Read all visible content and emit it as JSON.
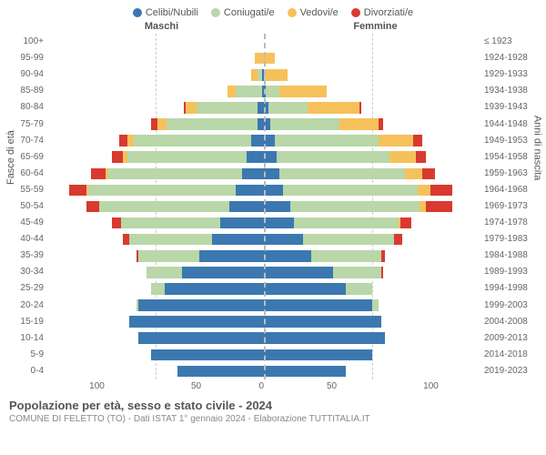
{
  "chart": {
    "type": "population-pyramid",
    "legend": [
      {
        "label": "Celibi/Nubili",
        "color": "#3b78b0"
      },
      {
        "label": "Coniugati/e",
        "color": "#b9d7a8"
      },
      {
        "label": "Vedovi/e",
        "color": "#f6c15b"
      },
      {
        "label": "Divorziati/e",
        "color": "#d83a2f"
      }
    ],
    "header_male": "Maschi",
    "header_female": "Femmine",
    "y_left_title": "Fasce di età",
    "y_right_title": "Anni di nascita",
    "x_max": 100,
    "x_ticks": [
      100,
      50,
      0,
      50,
      100
    ],
    "colors": {
      "grid": "#cccccc",
      "center": "#bbbbbb",
      "background": "#ffffff"
    },
    "age_groups": [
      {
        "age": "100+",
        "birth": "≤ 1923",
        "m": {
          "c": 0,
          "co": 0,
          "v": 0,
          "d": 0
        },
        "f": {
          "c": 0,
          "co": 0,
          "v": 0,
          "d": 0
        }
      },
      {
        "age": "95-99",
        "birth": "1924-1928",
        "m": {
          "c": 0,
          "co": 0,
          "v": 4,
          "d": 0
        },
        "f": {
          "c": 0,
          "co": 0,
          "v": 5,
          "d": 0
        }
      },
      {
        "age": "90-94",
        "birth": "1929-1933",
        "m": {
          "c": 1,
          "co": 2,
          "v": 3,
          "d": 0
        },
        "f": {
          "c": 0,
          "co": 1,
          "v": 10,
          "d": 0
        }
      },
      {
        "age": "85-89",
        "birth": "1934-1938",
        "m": {
          "c": 1,
          "co": 12,
          "v": 4,
          "d": 0
        },
        "f": {
          "c": 1,
          "co": 6,
          "v": 22,
          "d": 0
        }
      },
      {
        "age": "80-84",
        "birth": "1939-1943",
        "m": {
          "c": 3,
          "co": 28,
          "v": 5,
          "d": 1
        },
        "f": {
          "c": 2,
          "co": 18,
          "v": 24,
          "d": 1
        }
      },
      {
        "age": "75-79",
        "birth": "1944-1948",
        "m": {
          "c": 3,
          "co": 42,
          "v": 4,
          "d": 3
        },
        "f": {
          "c": 3,
          "co": 32,
          "v": 18,
          "d": 2
        }
      },
      {
        "age": "70-74",
        "birth": "1949-1953",
        "m": {
          "c": 6,
          "co": 54,
          "v": 3,
          "d": 4
        },
        "f": {
          "c": 5,
          "co": 48,
          "v": 16,
          "d": 4
        }
      },
      {
        "age": "65-69",
        "birth": "1954-1958",
        "m": {
          "c": 8,
          "co": 55,
          "v": 2,
          "d": 5
        },
        "f": {
          "c": 6,
          "co": 52,
          "v": 12,
          "d": 5
        }
      },
      {
        "age": "60-64",
        "birth": "1959-1963",
        "m": {
          "c": 10,
          "co": 62,
          "v": 1,
          "d": 7
        },
        "f": {
          "c": 7,
          "co": 58,
          "v": 8,
          "d": 6
        }
      },
      {
        "age": "55-59",
        "birth": "1964-1968",
        "m": {
          "c": 13,
          "co": 68,
          "v": 1,
          "d": 8
        },
        "f": {
          "c": 9,
          "co": 62,
          "v": 6,
          "d": 10
        }
      },
      {
        "age": "50-54",
        "birth": "1969-1973",
        "m": {
          "c": 16,
          "co": 60,
          "v": 0,
          "d": 6
        },
        "f": {
          "c": 12,
          "co": 60,
          "v": 3,
          "d": 12
        }
      },
      {
        "age": "45-49",
        "birth": "1974-1978",
        "m": {
          "c": 20,
          "co": 46,
          "v": 0,
          "d": 4
        },
        "f": {
          "c": 14,
          "co": 48,
          "v": 1,
          "d": 5
        }
      },
      {
        "age": "40-44",
        "birth": "1979-1983",
        "m": {
          "c": 24,
          "co": 38,
          "v": 0,
          "d": 3
        },
        "f": {
          "c": 18,
          "co": 42,
          "v": 0,
          "d": 4
        }
      },
      {
        "age": "35-39",
        "birth": "1984-1988",
        "m": {
          "c": 30,
          "co": 28,
          "v": 0,
          "d": 1
        },
        "f": {
          "c": 22,
          "co": 32,
          "v": 0,
          "d": 2
        }
      },
      {
        "age": "30-34",
        "birth": "1989-1993",
        "m": {
          "c": 38,
          "co": 16,
          "v": 0,
          "d": 0
        },
        "f": {
          "c": 32,
          "co": 22,
          "v": 0,
          "d": 1
        }
      },
      {
        "age": "25-29",
        "birth": "1994-1998",
        "m": {
          "c": 46,
          "co": 6,
          "v": 0,
          "d": 0
        },
        "f": {
          "c": 38,
          "co": 12,
          "v": 0,
          "d": 0
        }
      },
      {
        "age": "20-24",
        "birth": "1999-2003",
        "m": {
          "c": 58,
          "co": 1,
          "v": 0,
          "d": 0
        },
        "f": {
          "c": 50,
          "co": 3,
          "v": 0,
          "d": 0
        }
      },
      {
        "age": "15-19",
        "birth": "2004-2008",
        "m": {
          "c": 62,
          "co": 0,
          "v": 0,
          "d": 0
        },
        "f": {
          "c": 54,
          "co": 0,
          "v": 0,
          "d": 0
        }
      },
      {
        "age": "10-14",
        "birth": "2009-2013",
        "m": {
          "c": 58,
          "co": 0,
          "v": 0,
          "d": 0
        },
        "f": {
          "c": 56,
          "co": 0,
          "v": 0,
          "d": 0
        }
      },
      {
        "age": "5-9",
        "birth": "2014-2018",
        "m": {
          "c": 52,
          "co": 0,
          "v": 0,
          "d": 0
        },
        "f": {
          "c": 50,
          "co": 0,
          "v": 0,
          "d": 0
        }
      },
      {
        "age": "0-4",
        "birth": "2019-2023",
        "m": {
          "c": 40,
          "co": 0,
          "v": 0,
          "d": 0
        },
        "f": {
          "c": 38,
          "co": 0,
          "v": 0,
          "d": 0
        }
      }
    ],
    "title": "Popolazione per età, sesso e stato civile - 2024",
    "subtitle": "COMUNE DI FELETTO (TO) - Dati ISTAT 1° gennaio 2024 - Elaborazione TUTTITALIA.IT"
  }
}
